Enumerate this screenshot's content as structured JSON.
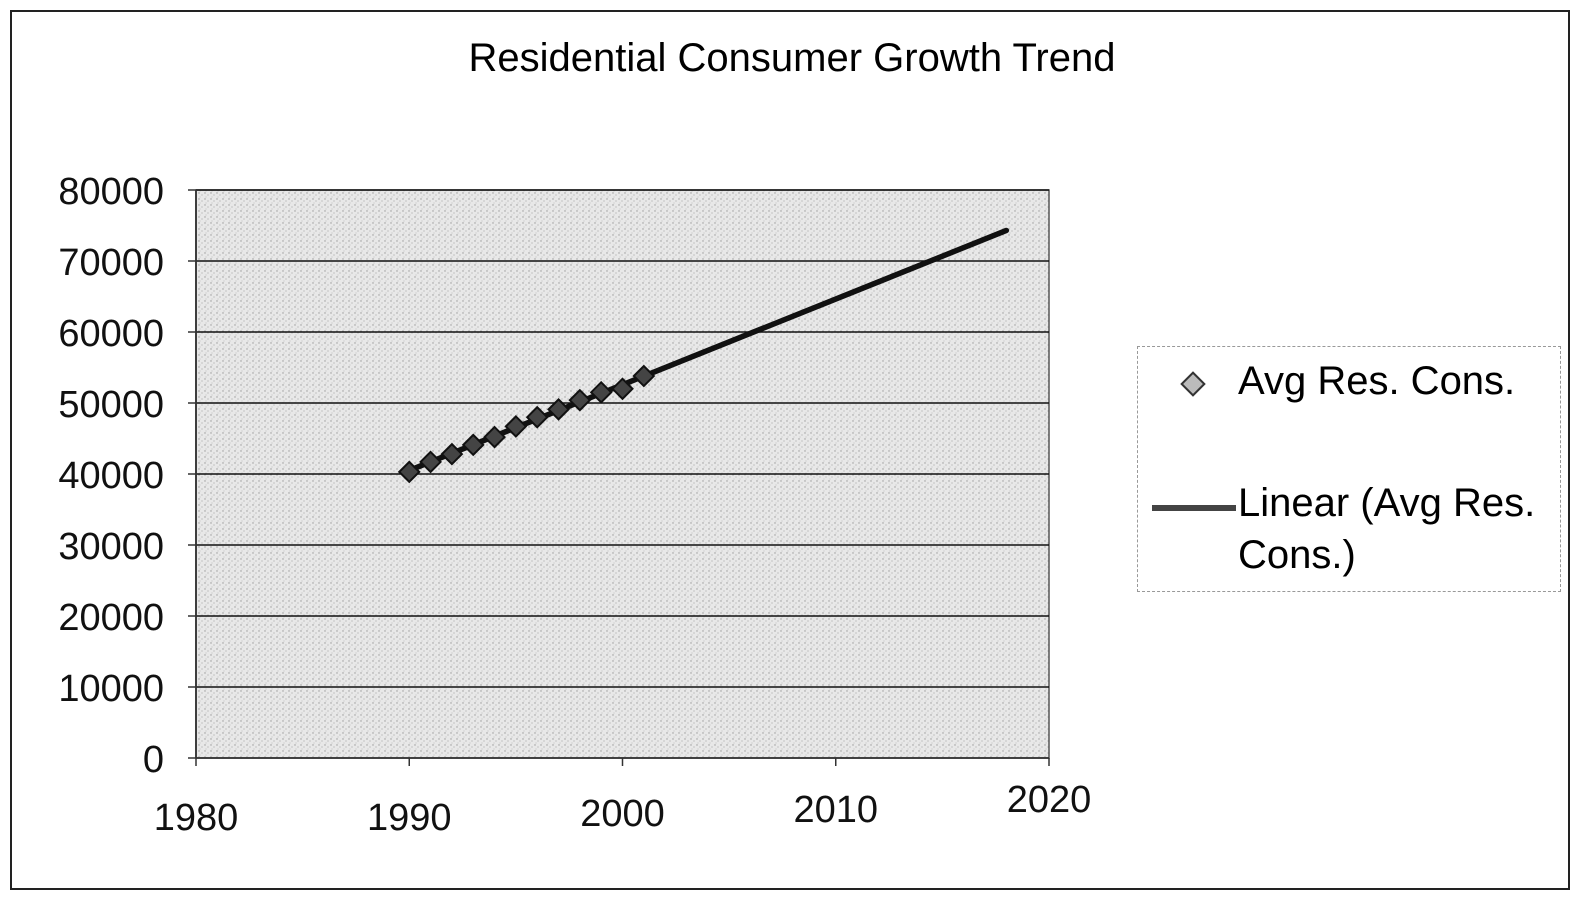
{
  "chart_data": {
    "type": "scatter",
    "title": "Residential Consumer Growth Trend",
    "xlabel": "",
    "ylabel": "",
    "xlim": [
      1980,
      2020
    ],
    "ylim": [
      0,
      80000
    ],
    "x_ticks": [
      "1980",
      "1990",
      "2000",
      "2010",
      "2020"
    ],
    "y_ticks": [
      "0",
      "10000",
      "20000",
      "30000",
      "40000",
      "50000",
      "60000",
      "70000",
      "80000"
    ],
    "grid": true,
    "legend_position": "right",
    "series": [
      {
        "name": "Avg Res. Cons.",
        "kind": "markers",
        "marker": "diamond",
        "color": "#333333",
        "x": [
          1990,
          1991,
          1992,
          1993,
          1994,
          1995,
          1996,
          1997,
          1998,
          1999,
          2000,
          2001
        ],
        "y": [
          40300,
          41700,
          42800,
          44100,
          45200,
          46700,
          48000,
          49100,
          50400,
          51500,
          52000,
          53800
        ]
      },
      {
        "name": "Linear (Avg Res. Cons.)",
        "kind": "trendline",
        "color": "#111111",
        "x": [
          1990,
          2018
        ],
        "y": [
          40500,
          74300
        ]
      }
    ]
  },
  "legend": {
    "items": [
      "Avg Res. Cons.",
      "Linear (Avg Res. Cons.)"
    ]
  },
  "colors": {
    "plot_background": "#e6e6e6",
    "gridline": "#111111",
    "trendline": "#111111",
    "marker_fill": "#444444"
  }
}
